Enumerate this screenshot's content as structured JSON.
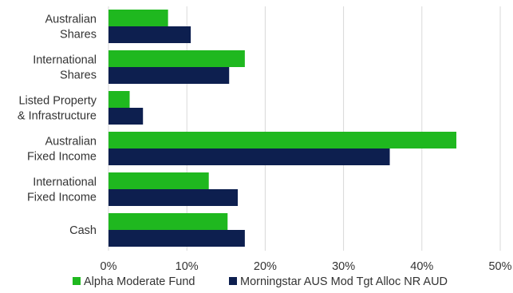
{
  "chart_data": {
    "type": "bar",
    "orientation": "horizontal",
    "categories": [
      [
        "Australian",
        "Shares"
      ],
      [
        "International",
        "Shares"
      ],
      [
        "Listed Property",
        "& Infrastructure"
      ],
      [
        "Australian",
        "Fixed Income"
      ],
      [
        "International",
        "Fixed Income"
      ],
      [
        "Cash"
      ]
    ],
    "series": [
      {
        "name": "Alpha Moderate Fund",
        "color": "#1fb81f",
        "values": [
          7.6,
          17.4,
          2.7,
          44.4,
          12.8,
          15.2
        ]
      },
      {
        "name": "Morningstar AUS Mod Tgt Alloc NR AUD",
        "color": "#0d1f4f",
        "values": [
          10.5,
          15.4,
          4.4,
          35.9,
          16.5,
          17.4
        ]
      }
    ],
    "xlim": [
      0,
      50
    ],
    "ticks": [
      "0%",
      "10%",
      "20%",
      "30%",
      "40%",
      "50%"
    ],
    "tick_values": [
      0,
      10,
      20,
      30,
      40,
      50
    ],
    "grid": true,
    "legend_position": "bottom"
  }
}
